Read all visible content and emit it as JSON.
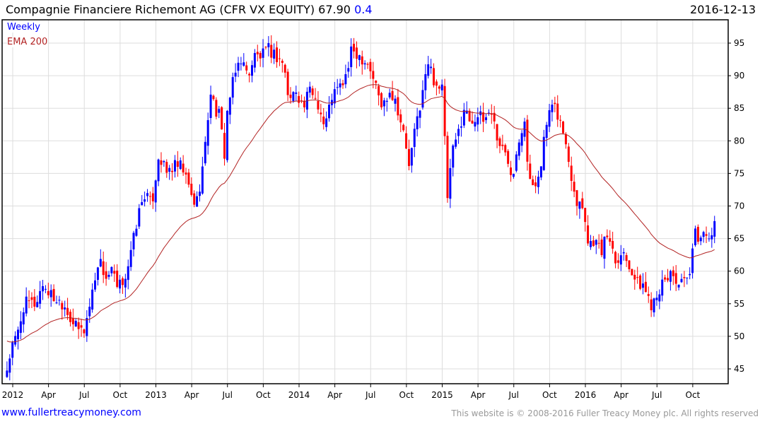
{
  "header": {
    "title": "Compagnie Financiere Richemont AG (CFR VX EQUITY) 67.90",
    "change": "0.4",
    "date": "2016-12-13"
  },
  "legend": {
    "period": "Weekly",
    "ema": "EMA 200"
  },
  "footer": {
    "site": "www.fullertreacymoney.com",
    "copyright": "This website is © 2008-2016 Fuller Treacy Money plc. All rights reserved"
  },
  "colors": {
    "up": "#0000ff",
    "down": "#ff0000",
    "ema": "#b22222",
    "grid": "#dddddd"
  },
  "chart_data": {
    "type": "candlestick",
    "title": "Compagnie Financiere Richemont AG (CFR VX EQUITY)",
    "last": 67.9,
    "ylim": [
      43,
      97
    ],
    "xlim": [
      2011.93,
      2017.0
    ],
    "y_ticks": [
      45,
      50,
      55,
      60,
      65,
      70,
      75,
      80,
      85,
      90,
      95
    ],
    "x_ticks": [
      {
        "t": 2012.0,
        "label": "2012"
      },
      {
        "t": 2012.25,
        "label": "Apr"
      },
      {
        "t": 2012.5,
        "label": "Jul"
      },
      {
        "t": 2012.75,
        "label": "Oct"
      },
      {
        "t": 2013.0,
        "label": "2013"
      },
      {
        "t": 2013.25,
        "label": "Apr"
      },
      {
        "t": 2013.5,
        "label": "Jul"
      },
      {
        "t": 2013.75,
        "label": "Oct"
      },
      {
        "t": 2014.0,
        "label": "2014"
      },
      {
        "t": 2014.25,
        "label": "Apr"
      },
      {
        "t": 2014.5,
        "label": "Jul"
      },
      {
        "t": 2014.75,
        "label": "Oct"
      },
      {
        "t": 2015.0,
        "label": "2015"
      },
      {
        "t": 2015.25,
        "label": "Apr"
      },
      {
        "t": 2015.5,
        "label": "Jul"
      },
      {
        "t": 2015.75,
        "label": "Oct"
      },
      {
        "t": 2016.0,
        "label": "2016"
      },
      {
        "t": 2016.25,
        "label": "Apr"
      },
      {
        "t": 2016.5,
        "label": "Jul"
      },
      {
        "t": 2016.75,
        "label": "Oct"
      }
    ],
    "ema_period_weeks": 40,
    "ema_start": 49.5,
    "close_anchors": [
      [
        2011.96,
        45
      ],
      [
        2011.99,
        48
      ],
      [
        2012.03,
        50
      ],
      [
        2012.08,
        55
      ],
      [
        2012.16,
        55
      ],
      [
        2012.21,
        58
      ],
      [
        2012.28,
        56
      ],
      [
        2012.36,
        55
      ],
      [
        2012.4,
        53
      ],
      [
        2012.45,
        51
      ],
      [
        2012.5,
        51
      ],
      [
        2012.54,
        55
      ],
      [
        2012.6,
        62
      ],
      [
        2012.65,
        59
      ],
      [
        2012.7,
        60
      ],
      [
        2012.73,
        57
      ],
      [
        2012.78,
        59
      ],
      [
        2012.82,
        62
      ],
      [
        2012.87,
        68
      ],
      [
        2012.92,
        72
      ],
      [
        2012.97,
        70
      ],
      [
        2013.02,
        78
      ],
      [
        2013.07,
        75
      ],
      [
        2013.12,
        76
      ],
      [
        2013.17,
        76
      ],
      [
        2013.2,
        75
      ],
      [
        2013.24,
        72
      ],
      [
        2013.28,
        70
      ],
      [
        2013.32,
        75
      ],
      [
        2013.35,
        80
      ],
      [
        2013.38,
        88
      ],
      [
        2013.41,
        85
      ],
      [
        2013.44,
        84
      ],
      [
        2013.48,
        78
      ],
      [
        2013.5,
        85
      ],
      [
        2013.54,
        89
      ],
      [
        2013.59,
        93
      ],
      [
        2013.64,
        90
      ],
      [
        2013.69,
        93
      ],
      [
        2013.74,
        93
      ],
      [
        2013.79,
        94
      ],
      [
        2013.84,
        93
      ],
      [
        2013.89,
        92
      ],
      [
        2013.93,
        86
      ],
      [
        2013.98,
        88
      ],
      [
        2014.03,
        85
      ],
      [
        2014.08,
        88
      ],
      [
        2014.13,
        86
      ],
      [
        2014.18,
        82
      ],
      [
        2014.23,
        87
      ],
      [
        2014.28,
        88
      ],
      [
        2014.33,
        90
      ],
      [
        2014.37,
        94
      ],
      [
        2014.43,
        93
      ],
      [
        2014.48,
        92
      ],
      [
        2014.53,
        89
      ],
      [
        2014.58,
        85
      ],
      [
        2014.63,
        88
      ],
      [
        2014.68,
        86
      ],
      [
        2014.73,
        81
      ],
      [
        2014.77,
        76
      ],
      [
        2014.82,
        83
      ],
      [
        2014.87,
        88
      ],
      [
        2014.9,
        92
      ],
      [
        2014.95,
        89
      ],
      [
        2015.0,
        88
      ],
      [
        2015.01,
        86
      ],
      [
        2015.03,
        70
      ],
      [
        2015.07,
        78
      ],
      [
        2015.11,
        81
      ],
      [
        2015.15,
        85
      ],
      [
        2015.2,
        83
      ],
      [
        2015.24,
        84
      ],
      [
        2015.29,
        83
      ],
      [
        2015.34,
        85
      ],
      [
        2015.39,
        80
      ],
      [
        2015.44,
        78
      ],
      [
        2015.49,
        75
      ],
      [
        2015.54,
        81
      ],
      [
        2015.58,
        84
      ],
      [
        2015.6,
        75
      ],
      [
        2015.64,
        72
      ],
      [
        2015.69,
        77
      ],
      [
        2015.74,
        84
      ],
      [
        2015.79,
        85
      ],
      [
        2015.84,
        82
      ],
      [
        2015.89,
        76
      ],
      [
        2015.94,
        71
      ],
      [
        2015.99,
        70
      ],
      [
        2016.02,
        64
      ],
      [
        2016.06,
        65
      ],
      [
        2016.11,
        63
      ],
      [
        2016.16,
        66
      ],
      [
        2016.21,
        62
      ],
      [
        2016.26,
        63
      ],
      [
        2016.31,
        61
      ],
      [
        2016.36,
        58
      ],
      [
        2016.4,
        58
      ],
      [
        2016.46,
        55
      ],
      [
        2016.5,
        57
      ],
      [
        2016.55,
        58
      ],
      [
        2016.6,
        60
      ],
      [
        2016.65,
        58
      ],
      [
        2016.7,
        58
      ],
      [
        2016.74,
        60
      ],
      [
        2016.76,
        66
      ],
      [
        2016.8,
        65
      ],
      [
        2016.85,
        66
      ],
      [
        2016.89,
        66
      ],
      [
        2016.92,
        67.9
      ]
    ]
  }
}
